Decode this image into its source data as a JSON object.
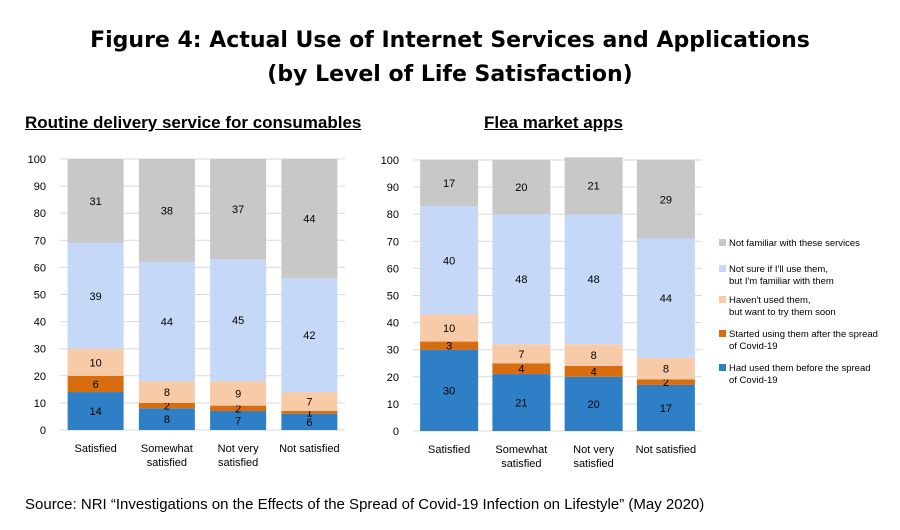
{
  "title": {
    "line1": "Figure 4: Actual Use of Internet Services and Applications",
    "line2": "(by Level of Life Satisfaction)"
  },
  "source": "Source: NRI “Investigations on the Effects of the Spread of Covid-19 Infection on Lifestyle” (May 2020)",
  "legend": [
    {
      "label": [
        "Not familiar with these services"
      ],
      "color": "#c8c8c8"
    },
    {
      "label": [
        "Not sure if I'll use them,",
        "but I'm familiar with them"
      ],
      "color": "#c5d8f7"
    },
    {
      "label": [
        "Haven't used them,",
        "but want to try them soon"
      ],
      "color": "#f8cba8"
    },
    {
      "label": [
        "Started using them after the spread",
        "of Covid-19"
      ],
      "color": "#d86d10"
    },
    {
      "label": [
        "Had used them before the spread",
        "of Covid-19"
      ],
      "color": "#2e7fc5"
    }
  ],
  "chart_data": [
    {
      "type": "bar",
      "stacked": true,
      "title": "Routine delivery service for consumables",
      "categories": [
        [
          "Satisfied"
        ],
        [
          "Somewhat",
          "satisfied"
        ],
        [
          "Not very",
          "satisfied"
        ],
        [
          "Not satisfied"
        ]
      ],
      "ylim": [
        0,
        100
      ],
      "yticks": [
        0,
        10,
        20,
        30,
        40,
        50,
        60,
        70,
        80,
        90,
        100
      ],
      "series": [
        {
          "name": "Had used them before the spread of Covid-19",
          "color": "#2e7fc5",
          "values": [
            14,
            8,
            7,
            6
          ]
        },
        {
          "name": "Started using them after the spread of Covid-19",
          "color": "#d86d10",
          "values": [
            6,
            2,
            2,
            1
          ]
        },
        {
          "name": "Haven't used them, but want to try them soon",
          "color": "#f8cba8",
          "values": [
            10,
            8,
            9,
            7
          ]
        },
        {
          "name": "Not sure if I'll use them, but I'm familiar with them",
          "color": "#c5d8f7",
          "values": [
            39,
            44,
            45,
            42
          ]
        },
        {
          "name": "Not familiar with these services",
          "color": "#c8c8c8",
          "values": [
            31,
            38,
            37,
            44
          ]
        }
      ]
    },
    {
      "type": "bar",
      "stacked": true,
      "title": "Flea market apps",
      "categories": [
        [
          "Satisfied"
        ],
        [
          "Somewhat",
          "satisfied"
        ],
        [
          "Not very",
          "satisfied"
        ],
        [
          "Not satisfied"
        ]
      ],
      "ylim": [
        0,
        100
      ],
      "yticks": [
        0,
        10,
        20,
        30,
        40,
        50,
        60,
        70,
        80,
        90,
        100
      ],
      "series": [
        {
          "name": "Had used them before the spread of Covid-19",
          "color": "#2e7fc5",
          "values": [
            30,
            21,
            20,
            17
          ]
        },
        {
          "name": "Started using them after the spread of Covid-19",
          "color": "#d86d10",
          "values": [
            3,
            4,
            4,
            2
          ]
        },
        {
          "name": "Haven't used them, but want to try them soon",
          "color": "#f8cba8",
          "values": [
            10,
            7,
            8,
            8
          ]
        },
        {
          "name": "Not sure if I'll use them, but I'm familiar with them",
          "color": "#c5d8f7",
          "values": [
            40,
            48,
            48,
            44
          ]
        },
        {
          "name": "Not familiar with these services",
          "color": "#c8c8c8",
          "values": [
            17,
            20,
            21,
            29
          ]
        }
      ]
    }
  ]
}
